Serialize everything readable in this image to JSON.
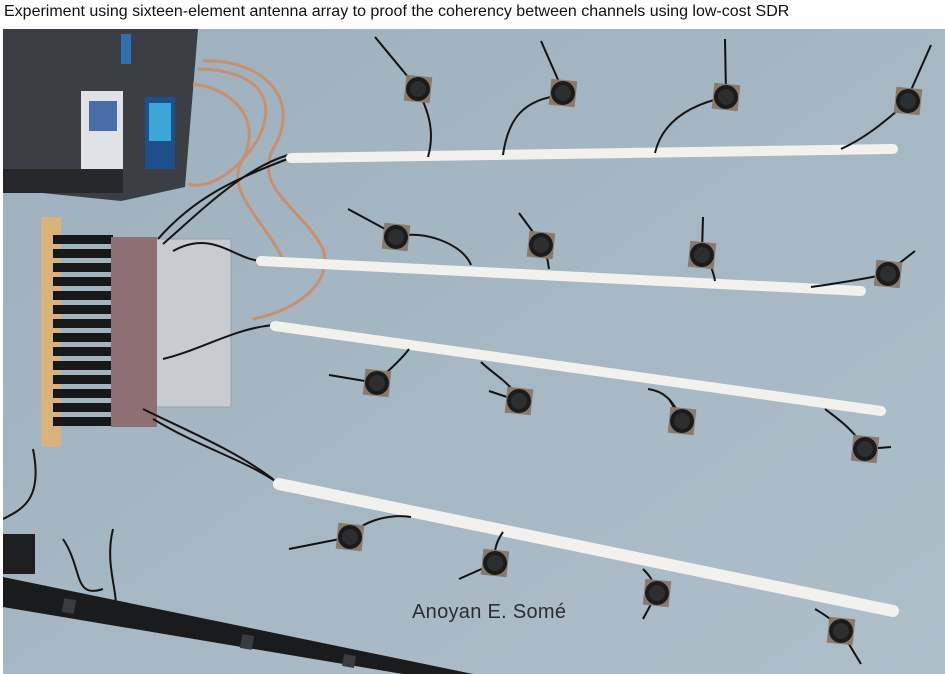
{
  "caption": "Experiment using sixteen-element antenna array to proof the coherency between channels using low-cost SDR",
  "photo_credit": "Anoyan E. Somé",
  "photo": {
    "subject": "four-rows-of-four-antennas-on-white-pipes",
    "colors": {
      "table": "#a4b6c2",
      "pipe": "#f2f1ee",
      "cable": "#141414",
      "coax": "#c9906e",
      "instrument": "#3a3d42"
    }
  }
}
